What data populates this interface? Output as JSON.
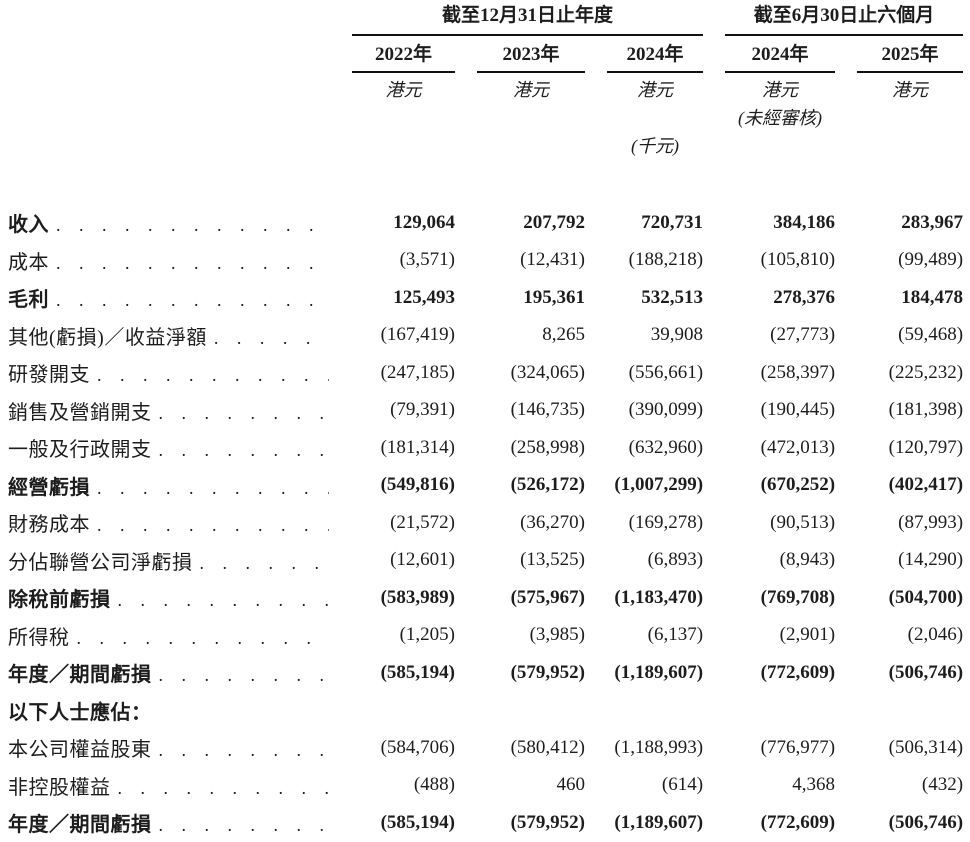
{
  "table": {
    "col_groups": [
      {
        "title": "截至12月31日止年度",
        "span": 3
      },
      {
        "title": "截至6月30日止六個月",
        "span": 2
      }
    ],
    "columns": [
      {
        "year": "2022年",
        "currency": "港元",
        "note1": "",
        "note2": ""
      },
      {
        "year": "2023年",
        "currency": "港元",
        "note1": "",
        "note2": ""
      },
      {
        "year": "2024年",
        "currency": "港元",
        "note1": "",
        "note2": "(千元)"
      },
      {
        "year": "2024年",
        "currency": "港元",
        "note1": "(未經審核)",
        "note2": ""
      },
      {
        "year": "2025年",
        "currency": "港元",
        "note1": "",
        "note2": ""
      }
    ],
    "rows": [
      {
        "label": "收入",
        "bold": true,
        "leader": true,
        "values": [
          "129,064",
          "207,792",
          "720,731",
          "384,186",
          "283,967"
        ]
      },
      {
        "label": "成本",
        "bold": false,
        "leader": true,
        "values": [
          "(3,571)",
          "(12,431)",
          "(188,218)",
          "(105,810)",
          "(99,489)"
        ]
      },
      {
        "label": "毛利",
        "bold": true,
        "leader": true,
        "values": [
          "125,493",
          "195,361",
          "532,513",
          "278,376",
          "184,478"
        ]
      },
      {
        "label": "其他(虧損)／收益淨額",
        "bold": false,
        "leader": true,
        "values": [
          "(167,419)",
          "8,265",
          "39,908",
          "(27,773)",
          "(59,468)"
        ]
      },
      {
        "label": "研發開支",
        "bold": false,
        "leader": true,
        "values": [
          "(247,185)",
          "(324,065)",
          "(556,661)",
          "(258,397)",
          "(225,232)"
        ]
      },
      {
        "label": "銷售及營銷開支",
        "bold": false,
        "leader": true,
        "values": [
          "(79,391)",
          "(146,735)",
          "(390,099)",
          "(190,445)",
          "(181,398)"
        ]
      },
      {
        "label": "一般及行政開支",
        "bold": false,
        "leader": true,
        "values": [
          "(181,314)",
          "(258,998)",
          "(632,960)",
          "(472,013)",
          "(120,797)"
        ]
      },
      {
        "label": "經營虧損",
        "bold": true,
        "leader": true,
        "values": [
          "(549,816)",
          "(526,172)",
          "(1,007,299)",
          "(670,252)",
          "(402,417)"
        ]
      },
      {
        "label": "財務成本",
        "bold": false,
        "leader": true,
        "values": [
          "(21,572)",
          "(36,270)",
          "(169,278)",
          "(90,513)",
          "(87,993)"
        ]
      },
      {
        "label": "分佔聯營公司淨虧損",
        "bold": false,
        "leader": true,
        "values": [
          "(12,601)",
          "(13,525)",
          "(6,893)",
          "(8,943)",
          "(14,290)"
        ]
      },
      {
        "label": "除稅前虧損",
        "bold": true,
        "leader": true,
        "values": [
          "(583,989)",
          "(575,967)",
          "(1,183,470)",
          "(769,708)",
          "(504,700)"
        ]
      },
      {
        "label": "所得稅",
        "bold": false,
        "leader": true,
        "values": [
          "(1,205)",
          "(3,985)",
          "(6,137)",
          "(2,901)",
          "(2,046)"
        ]
      },
      {
        "label": "年度／期間虧損",
        "bold": true,
        "leader": true,
        "values": [
          "(585,194)",
          "(579,952)",
          "(1,189,607)",
          "(772,609)",
          "(506,746)"
        ]
      },
      {
        "label": "以下人士應佔：",
        "bold": true,
        "leader": false,
        "values": [
          "",
          "",
          "",
          "",
          ""
        ]
      },
      {
        "label": "本公司權益股東",
        "bold": false,
        "leader": true,
        "values": [
          "(584,706)",
          "(580,412)",
          "(1,188,993)",
          "(776,977)",
          "(506,314)"
        ]
      },
      {
        "label": "非控股權益",
        "bold": false,
        "leader": true,
        "values": [
          "(488)",
          "460",
          "(614)",
          "4,368",
          "(432)"
        ]
      },
      {
        "label": "年度／期間虧損",
        "bold": true,
        "leader": true,
        "values": [
          "(585,194)",
          "(579,952)",
          "(1,189,607)",
          "(772,609)",
          "(506,746)"
        ]
      }
    ]
  }
}
